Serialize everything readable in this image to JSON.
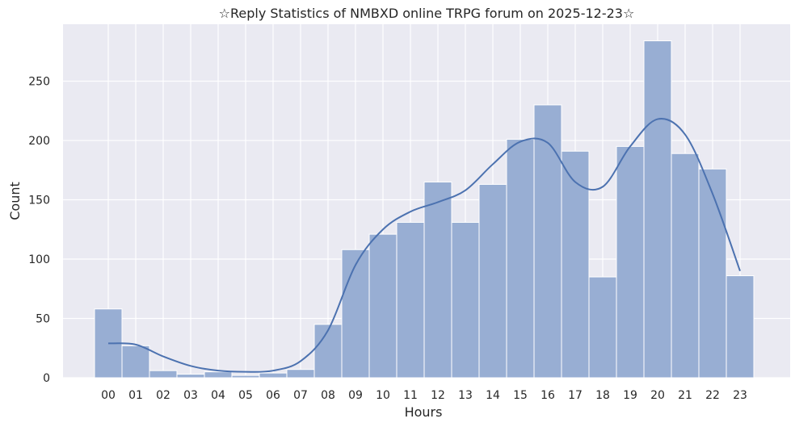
{
  "chart_data": {
    "type": "bar",
    "title": "☆Reply Statistics of NMBXD online TRPG forum on 2025-12-23☆",
    "xlabel": "Hours",
    "ylabel": "Count",
    "categories": [
      "00",
      "01",
      "02",
      "03",
      "04",
      "05",
      "06",
      "07",
      "08",
      "09",
      "10",
      "11",
      "12",
      "13",
      "14",
      "15",
      "16",
      "17",
      "18",
      "19",
      "20",
      "21",
      "22",
      "23"
    ],
    "values": [
      58,
      27,
      6,
      3,
      5,
      2,
      4,
      7,
      45,
      108,
      121,
      131,
      165,
      131,
      163,
      201,
      230,
      191,
      85,
      195,
      284,
      189,
      176,
      86
    ],
    "kde": [
      29,
      28,
      18,
      10,
      6,
      5,
      6,
      14,
      40,
      95,
      125,
      140,
      148,
      158,
      180,
      199,
      198,
      165,
      161,
      195,
      218,
      205,
      155,
      90
    ],
    "ylim": [
      0,
      298
    ],
    "yticks": [
      0,
      50,
      100,
      150,
      200,
      250
    ],
    "grid": true,
    "colors": {
      "bar_fill": "#98aed3",
      "bar_edge": "#ffffff",
      "kde_line": "#4c72b0",
      "background": "#eaeaf2",
      "grid": "#ffffff"
    }
  }
}
